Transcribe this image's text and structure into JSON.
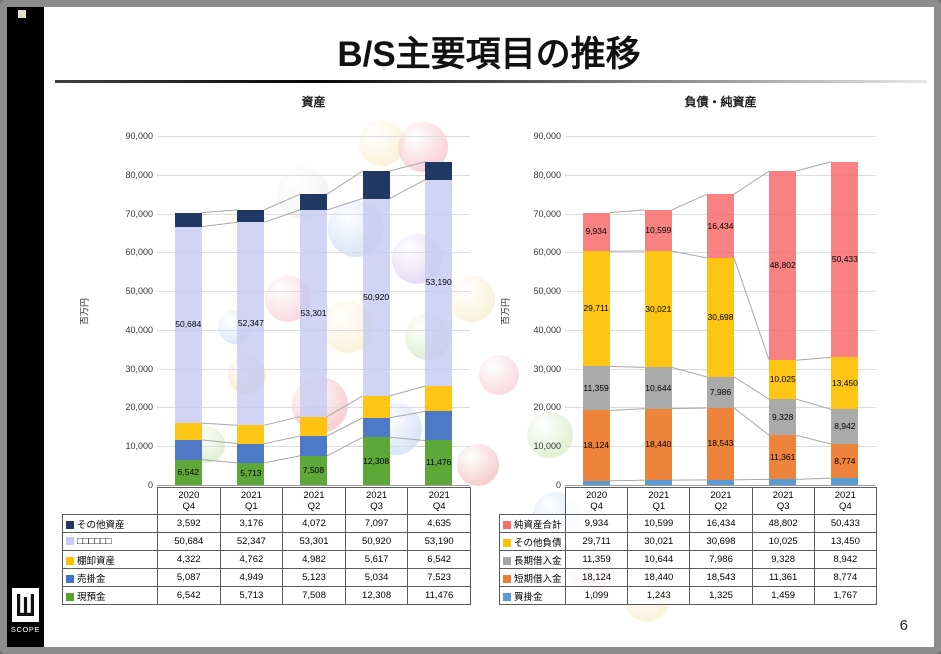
{
  "slide": {
    "title": "B/S主要項目の推移",
    "page_number": "6",
    "logo": {
      "text": "SCOPE"
    }
  },
  "chart_data": [
    {
      "type": "bar",
      "stacked": true,
      "title": "資産",
      "ylabel": "百万円",
      "ylim": [
        0,
        90000
      ],
      "ytick_interval": 10000,
      "grid": "horizontal",
      "legend_position": "table-below",
      "categories": [
        "2020 Q4",
        "2021 Q1",
        "2021 Q2",
        "2021 Q3",
        "2021 Q4"
      ],
      "series": [
        {
          "name": "現預金",
          "color": "#55A32E",
          "alpha": 0.95,
          "show_labels": true,
          "values": [
            6542,
            5713,
            7508,
            12308,
            11476
          ]
        },
        {
          "name": "売掛金",
          "color": "#4472C4",
          "alpha": 0.95,
          "show_labels": false,
          "values": [
            5087,
            4949,
            5123,
            5034,
            7523
          ]
        },
        {
          "name": "棚卸資産",
          "color": "#FFC000",
          "alpha": 0.92,
          "show_labels": false,
          "values": [
            4322,
            4762,
            4982,
            5617,
            6542
          ]
        },
        {
          "name": "□□□□□□",
          "color": "#C7C9F3",
          "alpha": 0.8,
          "show_labels": true,
          "values": [
            50684,
            52347,
            53301,
            50920,
            53190
          ]
        },
        {
          "name": "その他資産",
          "color": "#1F3864",
          "alpha": 1.0,
          "show_labels": false,
          "values": [
            3592,
            3176,
            4072,
            7097,
            4635
          ]
        }
      ]
    },
    {
      "type": "bar",
      "stacked": true,
      "title": "負債・純資産",
      "ylabel": "百万円",
      "ylim": [
        0,
        90000
      ],
      "ytick_interval": 10000,
      "grid": "horizontal",
      "legend_position": "table-below",
      "categories": [
        "2020 Q4",
        "2021 Q1",
        "2021 Q2",
        "2021 Q3",
        "2021 Q4"
      ],
      "series": [
        {
          "name": "買掛金",
          "color": "#5B9BD5",
          "alpha": 1.0,
          "show_labels": false,
          "values": [
            1099,
            1243,
            1325,
            1459,
            1767
          ]
        },
        {
          "name": "短期借入金",
          "color": "#ED7D31",
          "alpha": 0.95,
          "show_labels": true,
          "values": [
            18124,
            18440,
            18543,
            11361,
            8774
          ]
        },
        {
          "name": "長期借入金",
          "color": "#A5A5A5",
          "alpha": 0.95,
          "show_labels": true,
          "values": [
            11359,
            10644,
            7986,
            9328,
            8942
          ]
        },
        {
          "name": "その他負債",
          "color": "#FFC000",
          "alpha": 0.92,
          "show_labels": true,
          "values": [
            29711,
            30021,
            30698,
            10025,
            13450
          ]
        },
        {
          "name": "純資産合計",
          "color": "#F96B6B",
          "alpha": 0.85,
          "show_labels": true,
          "values": [
            9934,
            10599,
            16434,
            48802,
            50433
          ]
        }
      ]
    }
  ]
}
